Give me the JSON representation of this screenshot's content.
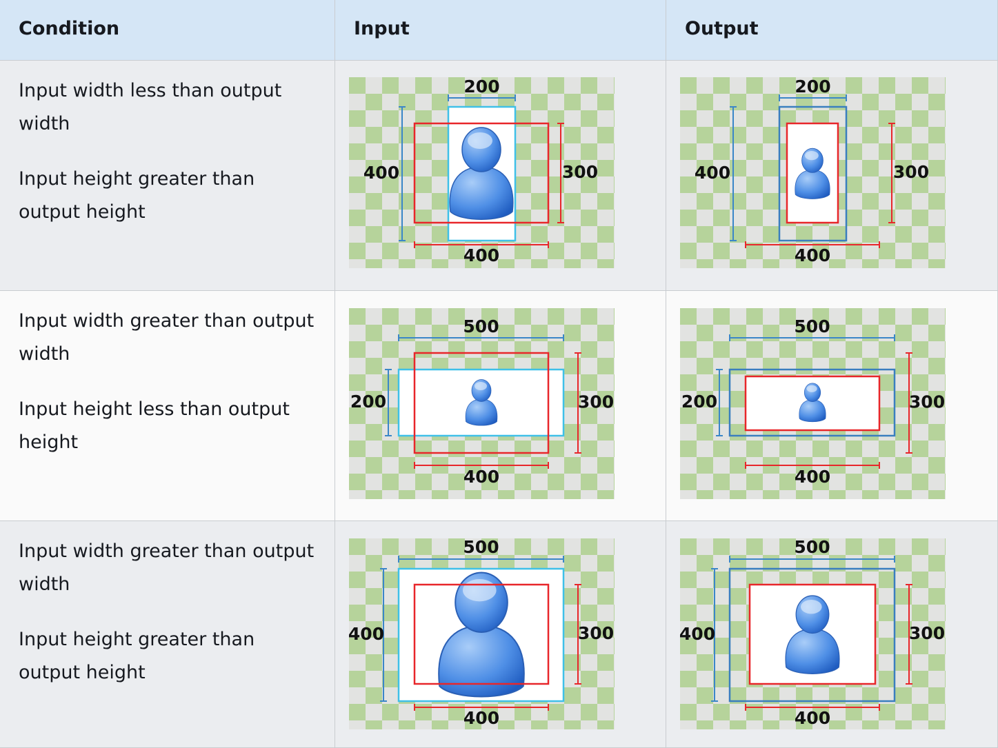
{
  "table": {
    "headers": [
      "Condition",
      "Input",
      "Output"
    ],
    "rows": [
      {
        "condition": [
          "Input width less than output width",
          "Input height greater than output height"
        ],
        "input": {
          "top": "200",
          "left": "400",
          "right": "300",
          "bottom": "400"
        },
        "output": {
          "top": "200",
          "left": "400",
          "right": "300",
          "bottom": "400"
        }
      },
      {
        "condition": [
          "Input width greater than output width",
          "Input height less than output height"
        ],
        "input": {
          "top": "500",
          "left": "200",
          "right": "300",
          "bottom": "400"
        },
        "output": {
          "top": "500",
          "left": "200",
          "right": "300",
          "bottom": "400"
        }
      },
      {
        "condition": [
          "Input width greater than output width",
          "Input height greater than output height"
        ],
        "input": {
          "top": "500",
          "left": "400",
          "right": "300",
          "bottom": "400"
        },
        "output": {
          "top": "500",
          "left": "400",
          "right": "300",
          "bottom": "400"
        }
      }
    ]
  }
}
